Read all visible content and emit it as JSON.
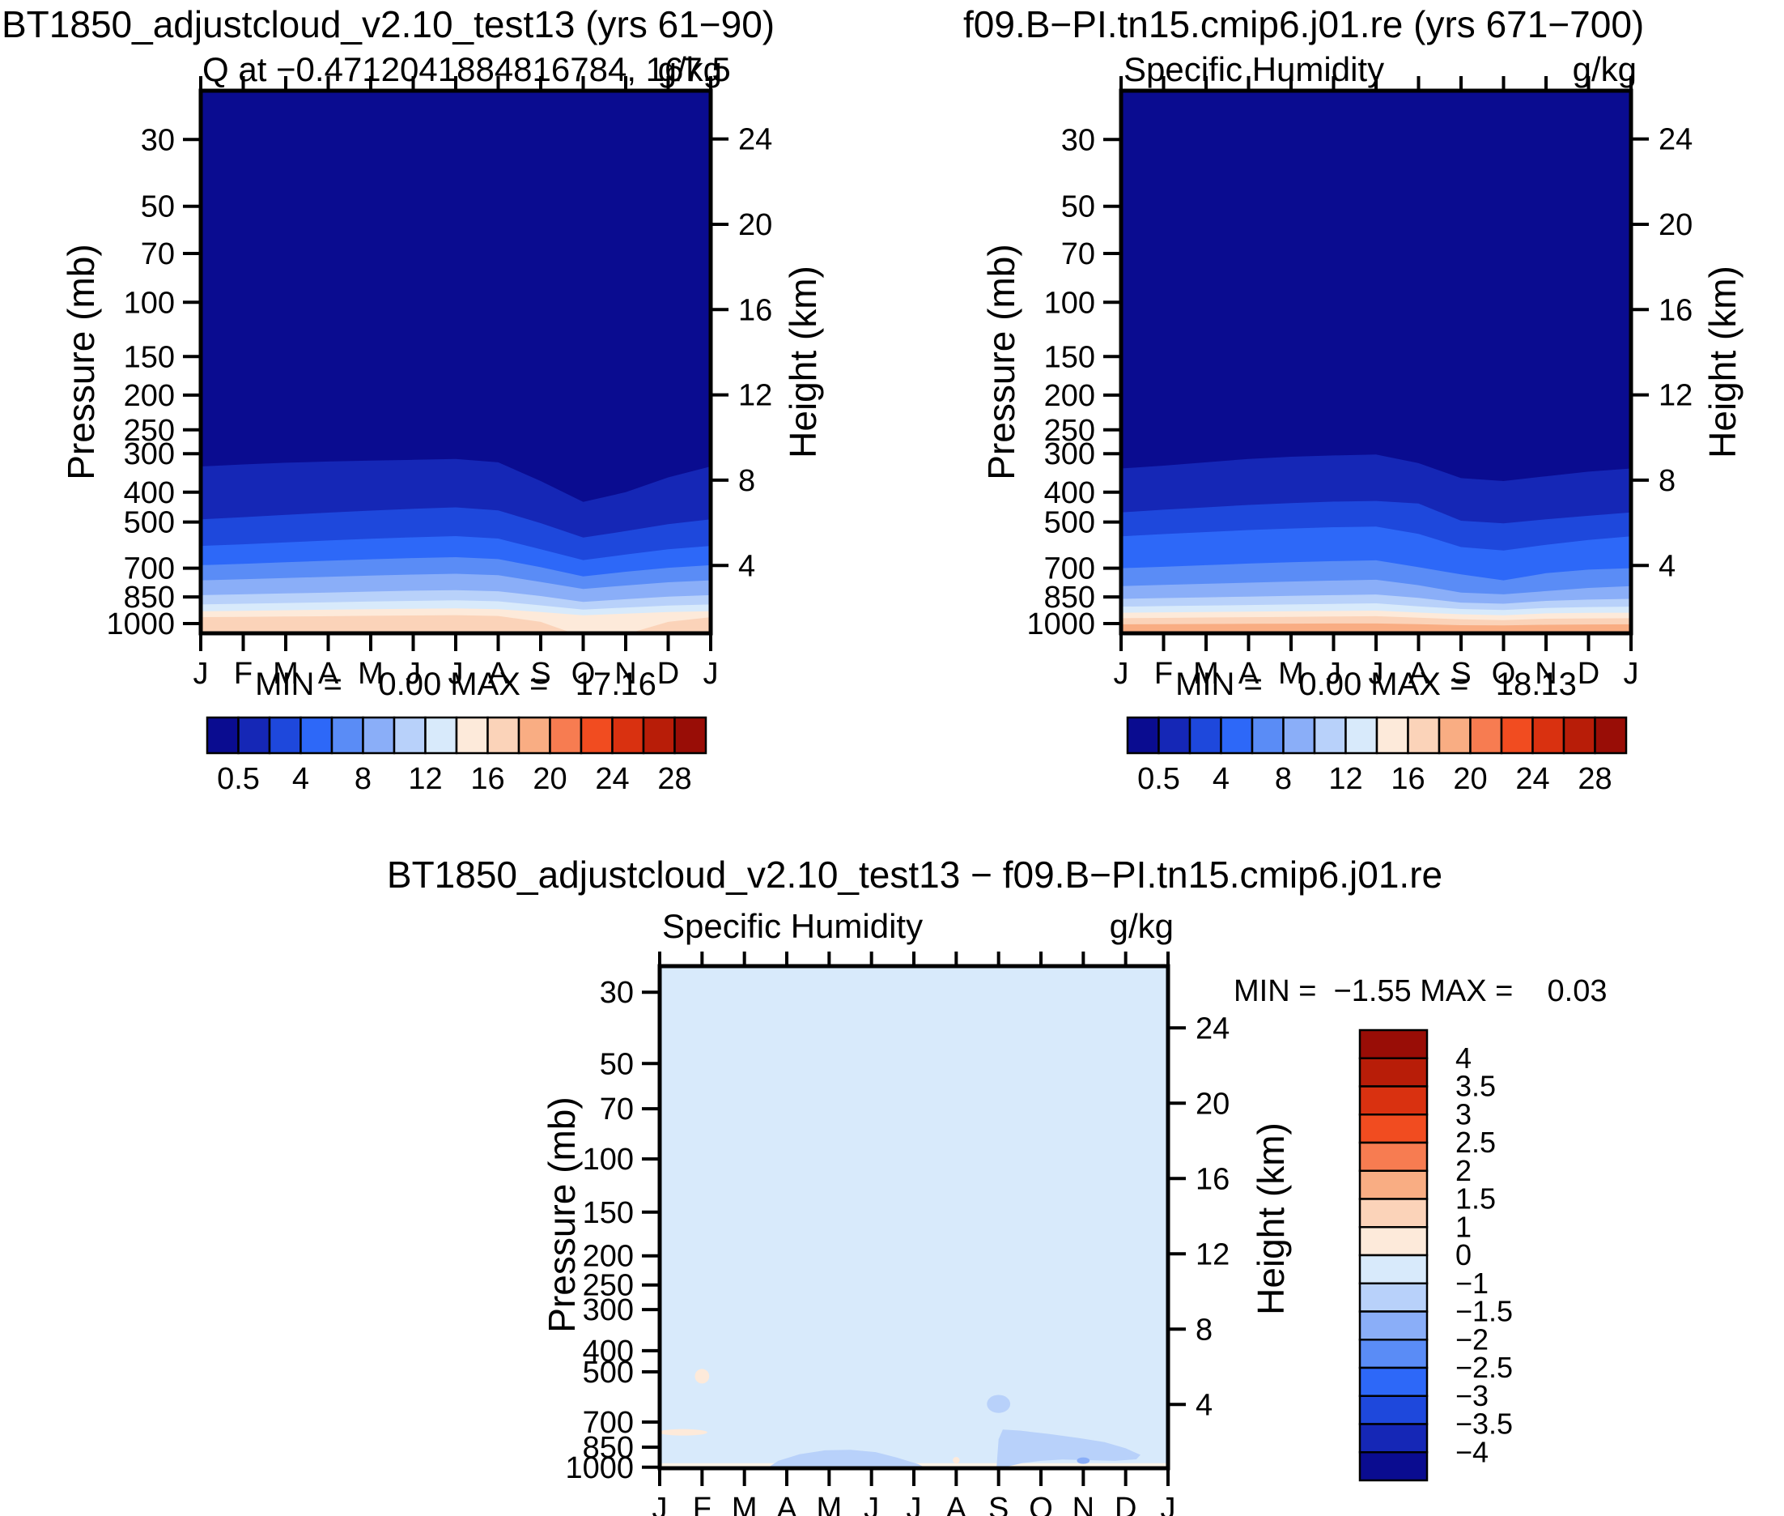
{
  "figure": {
    "background": "#ffffff"
  },
  "axes": {
    "pressure_label": "Pressure (mb)",
    "height_label": "Height (km)"
  },
  "months": [
    "J",
    "F",
    "M",
    "A",
    "M",
    "J",
    "J",
    "A",
    "S",
    "O",
    "N",
    "D",
    "J"
  ],
  "pressure_ticks": [
    30,
    50,
    70,
    100,
    150,
    200,
    250,
    300,
    400,
    500,
    700,
    850,
    1000
  ],
  "height_ticks": [
    24,
    20,
    16,
    12,
    8,
    4
  ],
  "palette": [
    "#0a0c90",
    "#1527b6",
    "#1e48dc",
    "#2d68f8",
    "#5a8cf6",
    "#8aaef8",
    "#b8d1fa",
    "#d8eafb",
    "#fdeada",
    "#fbd3b9",
    "#f9ad83",
    "#f77c51",
    "#f14c20",
    "#d93110",
    "#b81d08",
    "#990d06"
  ],
  "panels": {
    "top_left": {
      "title": "BT1850_adjustcloud_v2.10_test13 (yrs 61−90)",
      "subtitle": "Q at −0.4712041884816784, 167.5",
      "units": "g/kg",
      "stats": "MIN =    0.00 MAX =   17.16"
    },
    "top_right": {
      "title": "f09.B−PI.tn15.cmip6.j01.re (yrs 671−700)",
      "subtitle": "Specific Humidity",
      "units": "g/kg",
      "stats": "MIN =    0.00 MAX =   18.13"
    },
    "bottom": {
      "title": "BT1850_adjustcloud_v2.10_test13 − f09.B−PI.tn15.cmip6.j01.re",
      "subtitle": "Specific Humidity",
      "units": "g/kg",
      "stats": "MIN =  −1.55 MAX =    0.03"
    }
  },
  "chart_data": [
    {
      "type": "heatmap",
      "panel": "top_left",
      "title": "BT1850_adjustcloud_v2.10_test13 (yrs 61−90)",
      "variable": "Q at −0.4712041884816784, 167.5",
      "units": "g/kg",
      "x_categories": [
        "J",
        "F",
        "M",
        "A",
        "M",
        "J",
        "J",
        "A",
        "S",
        "O",
        "N",
        "D",
        "J"
      ],
      "ylabel": "Pressure (mb)",
      "y_ticks": [
        30,
        50,
        70,
        100,
        150,
        200,
        250,
        300,
        400,
        500,
        700,
        850,
        1000
      ],
      "y2label": "Height (km)",
      "y2_ticks": [
        24,
        20,
        16,
        12,
        8,
        4
      ],
      "min": 0.0,
      "max": 17.16,
      "levels": [
        0.5,
        2,
        4,
        6,
        8,
        10,
        12,
        14,
        16,
        18,
        20,
        22,
        24,
        26,
        28
      ],
      "colorbar_tick_labels": [
        "0.5",
        "4",
        "8",
        "12",
        "16",
        "20",
        "24",
        "28"
      ],
      "contours_pressure_by_month": [
        {
          "level": 0.5,
          "p": [
            330,
            325,
            321,
            318,
            316,
            314,
            312,
            320,
            368,
            430,
            400,
            358,
            330
          ]
        },
        {
          "level": 2,
          "p": [
            490,
            482,
            474,
            466,
            459,
            453,
            448,
            458,
            504,
            560,
            534,
            508,
            490
          ]
        },
        {
          "level": 4,
          "p": [
            595,
            588,
            580,
            572,
            565,
            559,
            554,
            564,
            610,
            660,
            634,
            610,
            595
          ]
        },
        {
          "level": 6,
          "p": [
            685,
            678,
            670,
            663,
            656,
            650,
            646,
            655,
            695,
            740,
            717,
            698,
            685
          ]
        },
        {
          "level": 8,
          "p": [
            760,
            754,
            748,
            742,
            736,
            731,
            727,
            734,
            768,
            805,
            787,
            770,
            760
          ]
        },
        {
          "level": 10,
          "p": [
            840,
            835,
            830,
            825,
            820,
            815,
            812,
            818,
            845,
            876,
            862,
            848,
            840
          ]
        },
        {
          "level": 12,
          "p": [
            890,
            886,
            882,
            878,
            874,
            871,
            868,
            873,
            895,
            918,
            907,
            896,
            890
          ]
        },
        {
          "level": 14,
          "p": [
            928,
            925,
            922,
            919,
            916,
            914,
            912,
            916,
            932,
            951,
            941,
            932,
            928
          ]
        },
        {
          "level": 16,
          "p": [
            962,
            960,
            958,
            956,
            954,
            952,
            950,
            955,
            990,
            1085,
            1068,
            990,
            962
          ]
        }
      ]
    },
    {
      "type": "heatmap",
      "panel": "top_right",
      "title": "f09.B−PI.tn15.cmip6.j01.re (yrs 671−700)",
      "variable": "Specific Humidity",
      "units": "g/kg",
      "x_categories": [
        "J",
        "F",
        "M",
        "A",
        "M",
        "J",
        "J",
        "A",
        "S",
        "O",
        "N",
        "D",
        "J"
      ],
      "ylabel": "Pressure (mb)",
      "y_ticks": [
        30,
        50,
        70,
        100,
        150,
        200,
        250,
        300,
        400,
        500,
        700,
        850,
        1000
      ],
      "y2label": "Height (km)",
      "y2_ticks": [
        24,
        20,
        16,
        12,
        8,
        4
      ],
      "min": 0.0,
      "max": 18.13,
      "levels": [
        0.5,
        2,
        4,
        6,
        8,
        10,
        12,
        14,
        16,
        18,
        20,
        22,
        24,
        26,
        28
      ],
      "colorbar_tick_labels": [
        "0.5",
        "4",
        "8",
        "12",
        "16",
        "20",
        "24",
        "28"
      ],
      "contours_pressure_by_month": [
        {
          "level": 0.5,
          "p": [
            335,
            328,
            320,
            312,
            307,
            304,
            302,
            322,
            360,
            368,
            355,
            343,
            335
          ]
        },
        {
          "level": 2,
          "p": [
            465,
            456,
            448,
            440,
            434,
            429,
            427,
            435,
            495,
            505,
            490,
            477,
            465
          ]
        },
        {
          "level": 4,
          "p": [
            555,
            546,
            538,
            530,
            524,
            519,
            517,
            545,
            600,
            615,
            590,
            570,
            555
          ]
        },
        {
          "level": 6,
          "p": [
            700,
            693,
            685,
            677,
            670,
            665,
            661,
            695,
            730,
            760,
            724,
            707,
            700
          ]
        },
        {
          "level": 8,
          "p": [
            790,
            784,
            778,
            772,
            766,
            761,
            757,
            785,
            825,
            835,
            817,
            800,
            790
          ]
        },
        {
          "level": 10,
          "p": [
            860,
            856,
            852,
            848,
            844,
            840,
            836,
            855,
            880,
            886,
            871,
            864,
            860
          ]
        },
        {
          "level": 12,
          "p": [
            902,
            899,
            896,
            893,
            890,
            887,
            884,
            900,
            915,
            921,
            909,
            904,
            902
          ]
        },
        {
          "level": 14,
          "p": [
            936,
            934,
            932,
            930,
            928,
            926,
            924,
            935,
            945,
            951,
            940,
            937,
            936
          ]
        },
        {
          "level": 16,
          "p": [
            968,
            966,
            964,
            962,
            960,
            958,
            956,
            965,
            975,
            979,
            971,
            969,
            968
          ]
        },
        {
          "level": 18,
          "p": [
            1005,
            1004,
            1003,
            1002,
            1001,
            1000,
            1000,
            1004,
            1010,
            1012,
            1008,
            1006,
            1005
          ]
        }
      ]
    },
    {
      "type": "heatmap",
      "panel": "bottom",
      "title": "BT1850_adjustcloud_v2.10_test13 − f09.B−PI.tn15.cmip6.j01.re",
      "variable": "Specific Humidity",
      "units": "g/kg",
      "x_categories": [
        "J",
        "F",
        "M",
        "A",
        "M",
        "J",
        "J",
        "A",
        "S",
        "O",
        "N",
        "D",
        "J"
      ],
      "ylabel": "Pressure (mb)",
      "y_ticks": [
        30,
        50,
        70,
        100,
        150,
        200,
        250,
        300,
        400,
        500,
        700,
        850,
        1000
      ],
      "y2label": "Height (km)",
      "y2_ticks": [
        24,
        20,
        16,
        12,
        8,
        4
      ],
      "min": -1.55,
      "max": 0.03,
      "levels": [
        -4,
        -3.5,
        -3,
        -2.5,
        -2,
        -1.5,
        -1,
        0,
        1,
        1.5,
        2,
        2.5,
        3,
        3.5,
        4
      ],
      "colorbar_tick_labels_top_to_bottom": [
        "4",
        "3.5",
        "3",
        "2.5",
        "2",
        "1.5",
        "1",
        "0",
        "−1",
        "−1.5",
        "−2",
        "−2.5",
        "−3",
        "−3.5",
        "−4"
      ],
      "background_band": "-1 to 0",
      "background_band_index": 7,
      "features": [
        {
          "shape": "surface_strip",
          "p_top": 968,
          "color": "#fcf3e7",
          "note": "near-zero strip at surface"
        },
        {
          "shape": "polygon",
          "band_index": 6,
          "points_month_p": [
            [
              2.5,
              1016
            ],
            [
              2.8,
              950
            ],
            [
              3.3,
              900
            ],
            [
              3.9,
              872
            ],
            [
              4.5,
              868
            ],
            [
              5.1,
              885
            ],
            [
              5.6,
              925
            ],
            [
              6.1,
              975
            ],
            [
              6.35,
              1016
            ]
          ],
          "note": "-1 to -1.5 streak Apr-Jul near surface"
        },
        {
          "shape": "polygon",
          "band_index": 6,
          "points_month_p": [
            [
              7.95,
              1016
            ],
            [
              8.0,
              800
            ],
            [
              8.1,
              742
            ],
            [
              8.5,
              748
            ],
            [
              9.2,
              768
            ],
            [
              9.9,
              792
            ],
            [
              10.5,
              818
            ],
            [
              11.0,
              858
            ],
            [
              11.35,
              905
            ],
            [
              11.25,
              938
            ],
            [
              10.75,
              950
            ],
            [
              10.1,
              944
            ],
            [
              9.5,
              940
            ],
            [
              9.0,
              950
            ],
            [
              8.55,
              968
            ],
            [
              8.2,
              995
            ],
            [
              8.1,
              1016
            ]
          ],
          "note": "-1 to -1.5 blob Sep-Dec lower troposphere"
        },
        {
          "shape": "ellipse",
          "band_index": 6,
          "month": 8.0,
          "p": 620,
          "w_months": 0.55,
          "h_mb": 75,
          "note": "diamond at Sep ~620mb"
        },
        {
          "shape": "ellipse",
          "band_index": 5,
          "month": 10.0,
          "p": 948,
          "w_months": 0.3,
          "h_mb": 22,
          "note": "darker dot at Nov ~950mb"
        },
        {
          "shape": "ellipse",
          "band_index": 8,
          "month": 1.0,
          "p": 515,
          "w_months": 0.34,
          "h_mb": 55,
          "note": "peach diamond Feb ~515mb"
        },
        {
          "shape": "ellipse",
          "band_index": 8,
          "month": 0.55,
          "p": 758,
          "w_months": 1.15,
          "h_mb": 28,
          "note": "peach sliver Jan-Feb ~760mb"
        },
        {
          "shape": "ellipse",
          "band_index": 8,
          "month": 7.0,
          "p": 945,
          "w_months": 0.16,
          "h_mb": 16,
          "note": "tiny peach dot Aug"
        }
      ]
    }
  ]
}
